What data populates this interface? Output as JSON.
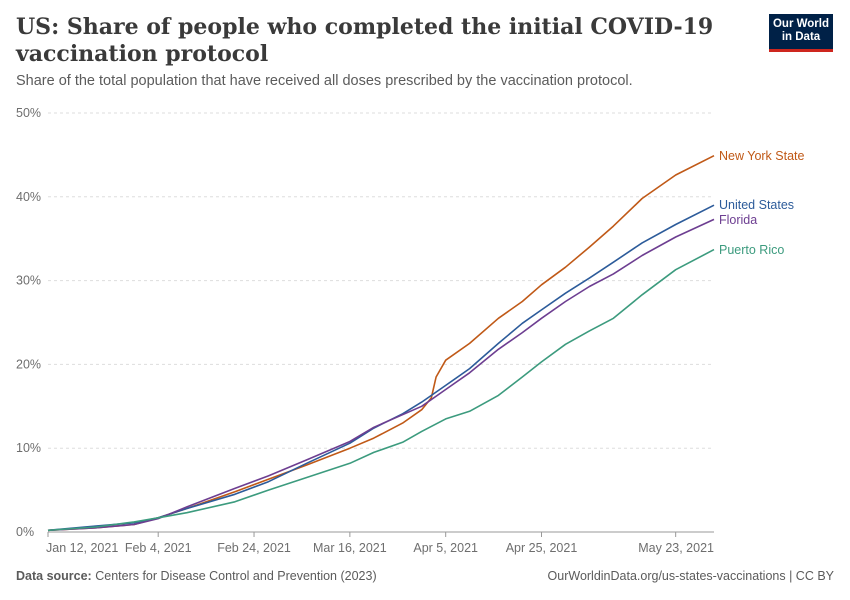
{
  "header": {
    "title": "US: Share of people who completed the initial COVID-19 vaccination protocol",
    "subtitle": "Share of the total population that have received all doses prescribed by the vaccination protocol."
  },
  "logo": {
    "line1": "Our World",
    "line2": "in Data"
  },
  "footer": {
    "source_label": "Data source:",
    "source_text": "Centers for Disease Control and Prevention (2023)",
    "right_text": "OurWorldinData.org/us-states-vaccinations | CC BY"
  },
  "chart_data": {
    "type": "line",
    "ylim": [
      0,
      50
    ],
    "y_ticks": [
      {
        "value": 0,
        "label": "0%"
      },
      {
        "value": 10,
        "label": "10%"
      },
      {
        "value": 20,
        "label": "20%"
      },
      {
        "value": 30,
        "label": "30%"
      },
      {
        "value": 40,
        "label": "40%"
      },
      {
        "value": 50,
        "label": "50%"
      }
    ],
    "x_start": "2021-01-12",
    "x_end": "2021-05-31",
    "x_ticks": [
      {
        "date": "2021-01-12",
        "label": "Jan 12, 2021"
      },
      {
        "date": "2021-02-04",
        "label": "Feb 4, 2021"
      },
      {
        "date": "2021-02-24",
        "label": "Feb 24, 2021"
      },
      {
        "date": "2021-03-16",
        "label": "Mar 16, 2021"
      },
      {
        "date": "2021-04-05",
        "label": "Apr 5, 2021"
      },
      {
        "date": "2021-04-25",
        "label": "Apr 25, 2021"
      },
      {
        "date": "2021-05-23",
        "label": "May 23, 2021"
      }
    ],
    "grid": true,
    "legend": "right-end labels",
    "series": [
      {
        "name": "New York State",
        "color": "#c05917",
        "points": [
          [
            "2021-01-12",
            0.2
          ],
          [
            "2021-01-22",
            0.5
          ],
          [
            "2021-01-30",
            0.9
          ],
          [
            "2021-02-04",
            1.7
          ],
          [
            "2021-02-10",
            2.8
          ],
          [
            "2021-02-20",
            4.8
          ],
          [
            "2021-02-27",
            6.3
          ],
          [
            "2021-03-07",
            8.0
          ],
          [
            "2021-03-16",
            10.0
          ],
          [
            "2021-03-21",
            11.2
          ],
          [
            "2021-03-27",
            13.0
          ],
          [
            "2021-03-31",
            14.6
          ],
          [
            "2021-04-02",
            16.0
          ],
          [
            "2021-04-03",
            18.5
          ],
          [
            "2021-04-05",
            20.5
          ],
          [
            "2021-04-10",
            22.5
          ],
          [
            "2021-04-16",
            25.5
          ],
          [
            "2021-04-21",
            27.5
          ],
          [
            "2021-04-25",
            29.5
          ],
          [
            "2021-04-30",
            31.6
          ],
          [
            "2021-05-05",
            34.0
          ],
          [
            "2021-05-10",
            36.5
          ],
          [
            "2021-05-16",
            39.8
          ],
          [
            "2021-05-23",
            42.6
          ],
          [
            "2021-05-31",
            44.9
          ]
        ]
      },
      {
        "name": "United States",
        "color": "#2c5b9a",
        "points": [
          [
            "2021-01-12",
            0.2
          ],
          [
            "2021-01-22",
            0.7
          ],
          [
            "2021-01-30",
            1.1
          ],
          [
            "2021-02-04",
            1.7
          ],
          [
            "2021-02-10",
            2.8
          ],
          [
            "2021-02-20",
            4.5
          ],
          [
            "2021-02-27",
            6.0
          ],
          [
            "2021-03-07",
            8.2
          ],
          [
            "2021-03-16",
            10.6
          ],
          [
            "2021-03-21",
            12.4
          ],
          [
            "2021-03-27",
            14.1
          ],
          [
            "2021-03-31",
            15.5
          ],
          [
            "2021-04-05",
            17.5
          ],
          [
            "2021-04-10",
            19.5
          ],
          [
            "2021-04-16",
            22.5
          ],
          [
            "2021-04-21",
            24.9
          ],
          [
            "2021-04-25",
            26.5
          ],
          [
            "2021-04-30",
            28.5
          ],
          [
            "2021-05-05",
            30.3
          ],
          [
            "2021-05-10",
            32.2
          ],
          [
            "2021-05-16",
            34.5
          ],
          [
            "2021-05-23",
            36.7
          ],
          [
            "2021-05-31",
            39.0
          ]
        ]
      },
      {
        "name": "Florida",
        "color": "#6d3e91",
        "points": [
          [
            "2021-01-12",
            0.2
          ],
          [
            "2021-01-22",
            0.5
          ],
          [
            "2021-01-30",
            0.9
          ],
          [
            "2021-02-04",
            1.6
          ],
          [
            "2021-02-10",
            3.0
          ],
          [
            "2021-02-20",
            5.2
          ],
          [
            "2021-02-27",
            6.7
          ],
          [
            "2021-03-07",
            8.6
          ],
          [
            "2021-03-16",
            10.8
          ],
          [
            "2021-03-21",
            12.5
          ],
          [
            "2021-03-27",
            14.0
          ],
          [
            "2021-03-31",
            15.0
          ],
          [
            "2021-04-05",
            17.0
          ],
          [
            "2021-04-10",
            19.0
          ],
          [
            "2021-04-16",
            21.8
          ],
          [
            "2021-04-21",
            23.8
          ],
          [
            "2021-04-25",
            25.5
          ],
          [
            "2021-04-30",
            27.5
          ],
          [
            "2021-05-05",
            29.3
          ],
          [
            "2021-05-10",
            30.8
          ],
          [
            "2021-05-16",
            33.0
          ],
          [
            "2021-05-23",
            35.2
          ],
          [
            "2021-05-31",
            37.3
          ]
        ]
      },
      {
        "name": "Puerto Rico",
        "color": "#3c9b7e",
        "points": [
          [
            "2021-01-12",
            0.2
          ],
          [
            "2021-01-22",
            0.6
          ],
          [
            "2021-01-30",
            1.2
          ],
          [
            "2021-02-04",
            1.7
          ],
          [
            "2021-02-10",
            2.3
          ],
          [
            "2021-02-20",
            3.6
          ],
          [
            "2021-02-27",
            5.0
          ],
          [
            "2021-03-07",
            6.5
          ],
          [
            "2021-03-16",
            8.2
          ],
          [
            "2021-03-21",
            9.5
          ],
          [
            "2021-03-27",
            10.7
          ],
          [
            "2021-03-31",
            12.0
          ],
          [
            "2021-04-05",
            13.5
          ],
          [
            "2021-04-10",
            14.4
          ],
          [
            "2021-04-16",
            16.3
          ],
          [
            "2021-04-21",
            18.5
          ],
          [
            "2021-04-25",
            20.3
          ],
          [
            "2021-04-30",
            22.4
          ],
          [
            "2021-05-05",
            24.0
          ],
          [
            "2021-05-10",
            25.5
          ],
          [
            "2021-05-16",
            28.3
          ],
          [
            "2021-05-23",
            31.3
          ],
          [
            "2021-05-31",
            33.7
          ]
        ]
      }
    ]
  }
}
